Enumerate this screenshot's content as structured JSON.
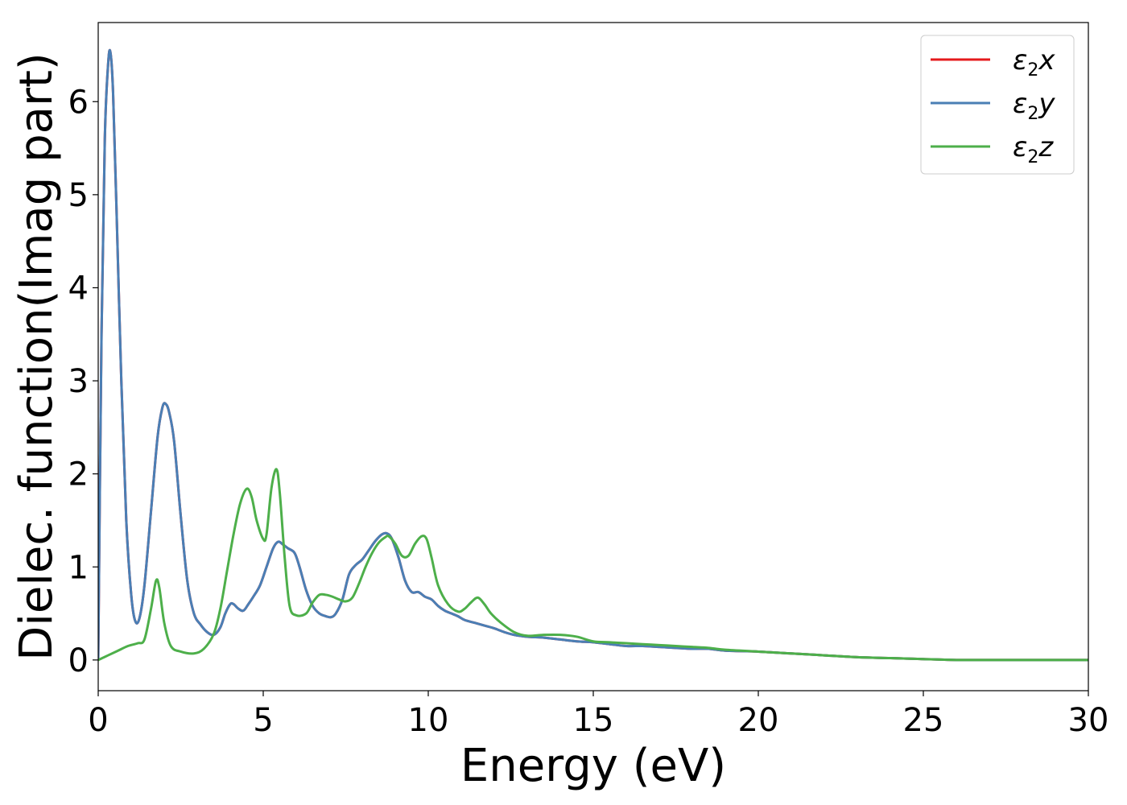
{
  "chart_data": {
    "type": "line",
    "title": "",
    "xlabel": "Energy (eV)",
    "ylabel": "Dielec. function(Imag part)",
    "xlim": [
      0,
      30
    ],
    "ylim": [
      -0.33,
      6.85
    ],
    "xticks": [
      0,
      5,
      10,
      15,
      20,
      25,
      30
    ],
    "xtick_labels": [
      "0",
      "5",
      "10",
      "15",
      "20",
      "25",
      "30"
    ],
    "yticks": [
      0,
      1,
      2,
      3,
      4,
      5,
      6
    ],
    "ytick_labels": [
      "0",
      "1",
      "2",
      "3",
      "4",
      "5",
      "6"
    ],
    "grid": false,
    "legend_position": "top-right",
    "series": [
      {
        "name": "ε2x",
        "legend_base": "ε",
        "legend_sub": "2",
        "legend_var": "x",
        "color": "#e41a1c",
        "x": [
          0,
          0.1,
          0.2,
          0.3,
          0.37,
          0.45,
          0.55,
          0.7,
          0.85,
          1.0,
          1.12,
          1.25,
          1.4,
          1.6,
          1.8,
          1.95,
          2.05,
          2.15,
          2.3,
          2.5,
          2.7,
          2.9,
          3.1,
          3.3,
          3.5,
          3.7,
          3.85,
          4.0,
          4.1,
          4.25,
          4.4,
          4.55,
          4.7,
          4.9,
          5.1,
          5.3,
          5.45,
          5.6,
          5.75,
          5.95,
          6.1,
          6.3,
          6.5,
          6.7,
          6.9,
          7.05,
          7.2,
          7.4,
          7.6,
          7.8,
          8.0,
          8.2,
          8.4,
          8.6,
          8.75,
          8.9,
          9.1,
          9.3,
          9.5,
          9.7,
          9.9,
          10.1,
          10.3,
          10.5,
          10.7,
          10.9,
          11.1,
          11.4,
          11.7,
          12.0,
          12.3,
          12.6,
          13.0,
          13.5,
          14.0,
          14.5,
          15.0,
          15.5,
          16.0,
          16.5,
          17.0,
          17.5,
          18.0,
          18.5,
          19.0,
          20.0,
          21.0,
          22.0,
          23.0,
          24.0,
          25.0,
          26.0,
          27.0,
          28.0,
          29.0,
          30.0
        ],
        "y": [
          0.0,
          3.5,
          5.6,
          6.4,
          6.53,
          6.1,
          4.9,
          3.0,
          1.5,
          0.7,
          0.42,
          0.45,
          0.8,
          1.6,
          2.4,
          2.72,
          2.75,
          2.66,
          2.35,
          1.55,
          0.85,
          0.5,
          0.38,
          0.3,
          0.27,
          0.35,
          0.5,
          0.6,
          0.6,
          0.55,
          0.53,
          0.6,
          0.68,
          0.8,
          1.0,
          1.2,
          1.27,
          1.24,
          1.2,
          1.15,
          1.0,
          0.75,
          0.58,
          0.5,
          0.47,
          0.46,
          0.5,
          0.65,
          0.92,
          1.02,
          1.08,
          1.18,
          1.28,
          1.35,
          1.36,
          1.3,
          1.1,
          0.85,
          0.73,
          0.73,
          0.68,
          0.65,
          0.58,
          0.53,
          0.5,
          0.47,
          0.43,
          0.4,
          0.37,
          0.34,
          0.3,
          0.27,
          0.25,
          0.24,
          0.22,
          0.2,
          0.19,
          0.17,
          0.15,
          0.15,
          0.14,
          0.13,
          0.12,
          0.12,
          0.1,
          0.09,
          0.07,
          0.05,
          0.03,
          0.02,
          0.01,
          0.0,
          0.0,
          0.0,
          0.0,
          0.0
        ]
      },
      {
        "name": "ε2y",
        "legend_base": "ε",
        "legend_sub": "2",
        "legend_var": "y",
        "color": "#4a7fb5",
        "x": [
          0,
          0.1,
          0.2,
          0.3,
          0.37,
          0.45,
          0.55,
          0.7,
          0.85,
          1.0,
          1.12,
          1.25,
          1.4,
          1.6,
          1.8,
          1.95,
          2.05,
          2.15,
          2.3,
          2.5,
          2.7,
          2.9,
          3.1,
          3.3,
          3.5,
          3.7,
          3.85,
          4.0,
          4.1,
          4.25,
          4.4,
          4.55,
          4.7,
          4.9,
          5.1,
          5.3,
          5.45,
          5.6,
          5.75,
          5.95,
          6.1,
          6.3,
          6.5,
          6.7,
          6.9,
          7.05,
          7.2,
          7.4,
          7.6,
          7.8,
          8.0,
          8.2,
          8.4,
          8.6,
          8.75,
          8.9,
          9.1,
          9.3,
          9.5,
          9.7,
          9.9,
          10.1,
          10.3,
          10.5,
          10.7,
          10.9,
          11.1,
          11.4,
          11.7,
          12.0,
          12.3,
          12.6,
          13.0,
          13.5,
          14.0,
          14.5,
          15.0,
          15.5,
          16.0,
          16.5,
          17.0,
          17.5,
          18.0,
          18.5,
          19.0,
          20.0,
          21.0,
          22.0,
          23.0,
          24.0,
          25.0,
          26.0,
          27.0,
          28.0,
          29.0,
          30.0
        ],
        "y": [
          0.0,
          3.5,
          5.6,
          6.4,
          6.53,
          6.1,
          4.9,
          3.0,
          1.5,
          0.7,
          0.42,
          0.45,
          0.8,
          1.6,
          2.4,
          2.72,
          2.75,
          2.66,
          2.35,
          1.55,
          0.85,
          0.5,
          0.38,
          0.3,
          0.27,
          0.35,
          0.5,
          0.6,
          0.6,
          0.55,
          0.53,
          0.6,
          0.68,
          0.8,
          1.0,
          1.2,
          1.27,
          1.24,
          1.2,
          1.15,
          1.0,
          0.75,
          0.58,
          0.5,
          0.47,
          0.46,
          0.5,
          0.65,
          0.92,
          1.02,
          1.08,
          1.18,
          1.28,
          1.35,
          1.36,
          1.3,
          1.1,
          0.85,
          0.73,
          0.73,
          0.68,
          0.65,
          0.58,
          0.53,
          0.5,
          0.47,
          0.43,
          0.4,
          0.37,
          0.34,
          0.3,
          0.27,
          0.25,
          0.24,
          0.22,
          0.2,
          0.19,
          0.17,
          0.15,
          0.15,
          0.14,
          0.13,
          0.12,
          0.12,
          0.1,
          0.09,
          0.07,
          0.05,
          0.03,
          0.02,
          0.01,
          0.0,
          0.0,
          0.0,
          0.0,
          0.0
        ]
      },
      {
        "name": "ε2z",
        "legend_base": "ε",
        "legend_sub": "2",
        "legend_var": "z",
        "color": "#4daf4a",
        "x": [
          0,
          0.3,
          0.6,
          0.9,
          1.2,
          1.4,
          1.6,
          1.75,
          1.85,
          2.0,
          2.2,
          2.5,
          2.9,
          3.2,
          3.5,
          3.7,
          3.9,
          4.1,
          4.3,
          4.5,
          4.65,
          4.8,
          5.0,
          5.1,
          5.25,
          5.4,
          5.5,
          5.65,
          5.8,
          6.0,
          6.3,
          6.5,
          6.7,
          6.9,
          7.1,
          7.3,
          7.5,
          7.7,
          7.9,
          8.1,
          8.3,
          8.5,
          8.7,
          8.8,
          9.0,
          9.2,
          9.4,
          9.6,
          9.8,
          9.95,
          10.1,
          10.3,
          10.6,
          10.9,
          11.1,
          11.3,
          11.5,
          11.7,
          11.9,
          12.2,
          12.6,
          13.0,
          13.5,
          14.0,
          14.5,
          15.0,
          15.5,
          16.0,
          16.5,
          17.0,
          17.5,
          18.0,
          18.5,
          19.0,
          20.0,
          21.0,
          22.0,
          23.0,
          24.0,
          25.0,
          26.0,
          27.0,
          28.0,
          29.0,
          30.0
        ],
        "y": [
          0.0,
          0.05,
          0.1,
          0.15,
          0.18,
          0.22,
          0.55,
          0.85,
          0.78,
          0.4,
          0.15,
          0.09,
          0.07,
          0.12,
          0.28,
          0.55,
          0.95,
          1.35,
          1.68,
          1.84,
          1.75,
          1.5,
          1.3,
          1.35,
          1.85,
          2.05,
          1.8,
          1.1,
          0.58,
          0.48,
          0.5,
          0.62,
          0.7,
          0.7,
          0.68,
          0.65,
          0.63,
          0.67,
          0.82,
          1.0,
          1.15,
          1.26,
          1.32,
          1.33,
          1.25,
          1.12,
          1.12,
          1.25,
          1.33,
          1.3,
          1.1,
          0.8,
          0.6,
          0.52,
          0.55,
          0.62,
          0.67,
          0.6,
          0.5,
          0.4,
          0.3,
          0.26,
          0.27,
          0.27,
          0.25,
          0.2,
          0.19,
          0.18,
          0.17,
          0.16,
          0.15,
          0.14,
          0.13,
          0.11,
          0.09,
          0.07,
          0.05,
          0.03,
          0.02,
          0.01,
          0.0,
          0.0,
          0.0,
          0.0,
          0.0
        ]
      }
    ]
  }
}
